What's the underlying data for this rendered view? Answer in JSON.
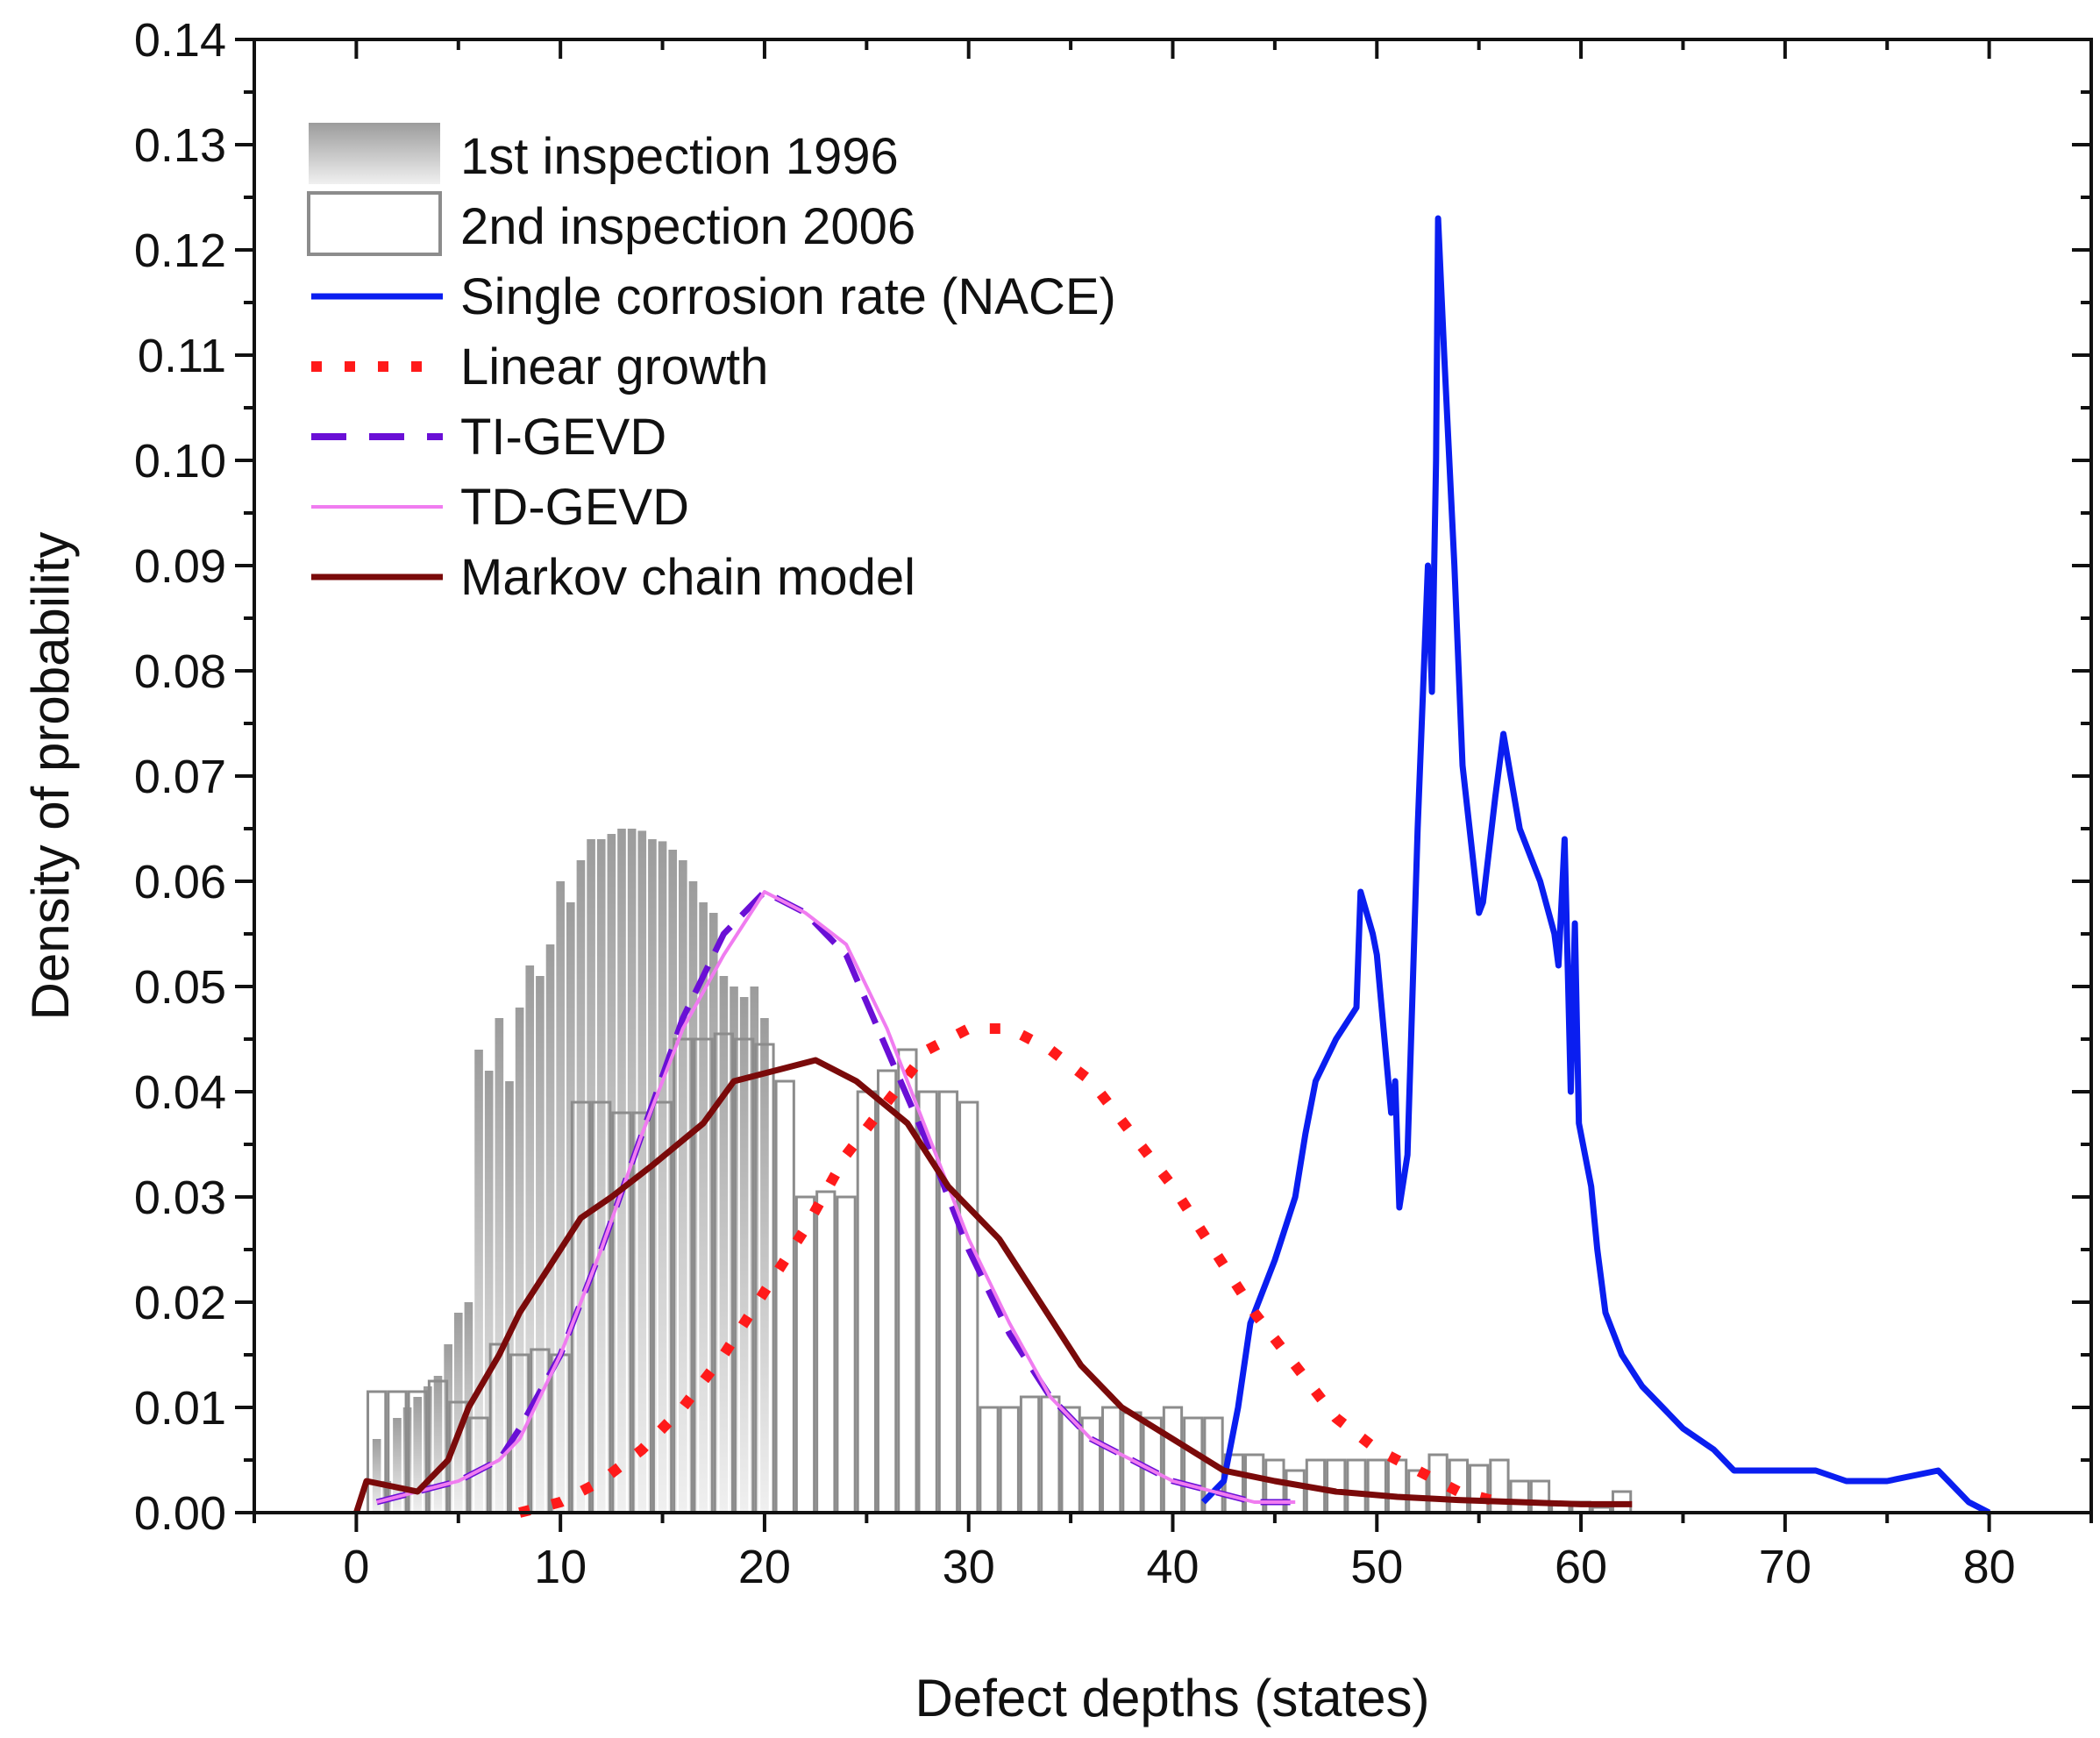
{
  "chart_data": {
    "type": "bar",
    "title": "",
    "xlabel": "Defect depths (states)",
    "ylabel": "Density of probability",
    "xlim": [
      -5,
      85
    ],
    "ylim": [
      0,
      0.14
    ],
    "xticks": [
      0,
      10,
      20,
      30,
      40,
      50,
      60,
      70,
      80
    ],
    "yticks": [
      0.0,
      0.01,
      0.02,
      0.03,
      0.04,
      0.05,
      0.06,
      0.07,
      0.08,
      0.09,
      0.1,
      0.11,
      0.12,
      0.13,
      0.14
    ],
    "xtick_labels": [
      "0",
      "10",
      "20",
      "30",
      "40",
      "50",
      "60",
      "70",
      "80"
    ],
    "ytick_labels": [
      "0.00",
      "0.01",
      "0.02",
      "0.03",
      "0.04",
      "0.05",
      "0.06",
      "0.07",
      "0.08",
      "0.09",
      "0.10",
      "0.11",
      "0.12",
      "0.13",
      "0.14"
    ],
    "legend_position": "top-left",
    "grid": false,
    "histograms": [
      {
        "name": "1st inspection 1996",
        "style": "filled-gradient-gray",
        "bin_width": 0.5,
        "x": [
          1.0,
          1.5,
          2.0,
          2.5,
          3.0,
          3.5,
          4.0,
          4.5,
          5.0,
          5.5,
          6.0,
          6.5,
          7.0,
          7.5,
          8.0,
          8.5,
          9.0,
          9.5,
          10.0,
          10.5,
          11.0,
          11.5,
          12.0,
          12.5,
          13.0,
          13.5,
          14.0,
          14.5,
          15.0,
          15.5,
          16.0,
          16.5,
          17.0,
          17.5,
          18.0,
          18.5,
          19.0,
          19.5,
          20.0
        ],
        "values": [
          0.007,
          0.003,
          0.009,
          0.01,
          0.011,
          0.012,
          0.013,
          0.016,
          0.019,
          0.02,
          0.044,
          0.042,
          0.047,
          0.041,
          0.048,
          0.052,
          0.051,
          0.054,
          0.06,
          0.058,
          0.062,
          0.064,
          0.064,
          0.0645,
          0.065,
          0.065,
          0.0648,
          0.064,
          0.0638,
          0.063,
          0.062,
          0.06,
          0.058,
          0.057,
          0.051,
          0.05,
          0.049,
          0.05,
          0.047
        ]
      },
      {
        "name": "2nd inspection 2006",
        "style": "outline-gray",
        "bin_width": 1.0,
        "x": [
          1,
          2,
          3,
          4,
          5,
          6,
          7,
          8,
          9,
          10,
          11,
          12,
          13,
          14,
          15,
          16,
          17,
          18,
          19,
          20,
          21,
          22,
          23,
          24,
          25,
          26,
          27,
          28,
          29,
          30,
          31,
          32,
          33,
          34,
          35,
          36,
          37,
          38,
          39,
          40,
          41,
          42,
          43,
          44,
          45,
          46,
          47,
          48,
          49,
          50,
          51,
          52,
          53,
          54,
          55,
          56,
          57,
          58,
          59,
          60,
          61,
          62
        ],
        "values": [
          0.0115,
          0.0115,
          0.0115,
          0.0125,
          0.0105,
          0.009,
          0.016,
          0.015,
          0.0155,
          0.015,
          0.039,
          0.039,
          0.038,
          0.038,
          0.039,
          0.045,
          0.045,
          0.0455,
          0.045,
          0.0445,
          0.041,
          0.03,
          0.0305,
          0.03,
          0.04,
          0.042,
          0.044,
          0.04,
          0.04,
          0.039,
          0.01,
          0.01,
          0.011,
          0.011,
          0.01,
          0.009,
          0.01,
          0.0095,
          0.009,
          0.01,
          0.009,
          0.009,
          0.0055,
          0.0055,
          0.005,
          0.004,
          0.005,
          0.005,
          0.005,
          0.005,
          0.005,
          0.004,
          0.0055,
          0.005,
          0.0045,
          0.005,
          0.003,
          0.003,
          0.001,
          0.001,
          0.0005,
          0.002
        ]
      }
    ],
    "series": [
      {
        "name": "Single corrosion rate (NACE)",
        "style": "solid-blue",
        "x": [
          41.5,
          42.5,
          43.2,
          43.8,
          45.0,
          46.0,
          46.5,
          47.0,
          48.0,
          49.0,
          49.2,
          49.8,
          50.0,
          50.7,
          50.9,
          51.1,
          51.5,
          52.0,
          52.5,
          52.7,
          52.9,
          53.0,
          53.3,
          53.8,
          54.2,
          55.0,
          55.2,
          55.8,
          56.2,
          57.0,
          58.0,
          58.7,
          58.9,
          59.2,
          59.5,
          59.7,
          59.9,
          60.5,
          60.8,
          61.2,
          62.0,
          63.0,
          64.0,
          65.0,
          66.5,
          67.5,
          68.5,
          70.0,
          71.5,
          73.0,
          75.0,
          77.5,
          78.0,
          79.0,
          80.0
        ],
        "y": [
          0.001,
          0.003,
          0.01,
          0.018,
          0.024,
          0.03,
          0.036,
          0.041,
          0.045,
          0.048,
          0.059,
          0.055,
          0.053,
          0.038,
          0.041,
          0.029,
          0.034,
          0.065,
          0.09,
          0.078,
          0.1,
          0.123,
          0.11,
          0.09,
          0.071,
          0.057,
          0.058,
          0.068,
          0.074,
          0.065,
          0.06,
          0.055,
          0.052,
          0.064,
          0.04,
          0.056,
          0.037,
          0.031,
          0.025,
          0.019,
          0.015,
          0.012,
          0.01,
          0.008,
          0.006,
          0.004,
          0.004,
          0.004,
          0.004,
          0.003,
          0.003,
          0.004,
          0.003,
          0.001,
          0.0
        ]
      },
      {
        "name": "Linear growth",
        "style": "dotted-red",
        "x": [
          8.0,
          10.0,
          12.0,
          14.0,
          16.0,
          18.0,
          20.0,
          22.0,
          24.0,
          26.0,
          28.0,
          30.0,
          32.0,
          34.0,
          36.0,
          38.0,
          40.0,
          42.0,
          44.0,
          46.0,
          48.0,
          50.0,
          52.0,
          54.0,
          56.0
        ],
        "y": [
          0.0,
          0.001,
          0.003,
          0.006,
          0.01,
          0.015,
          0.021,
          0.027,
          0.034,
          0.039,
          0.044,
          0.046,
          0.046,
          0.044,
          0.041,
          0.036,
          0.031,
          0.025,
          0.019,
          0.014,
          0.009,
          0.006,
          0.004,
          0.002,
          0.001
        ]
      },
      {
        "name": "TI-GEVD",
        "style": "dashed-purple",
        "x": [
          1.0,
          3.0,
          5.0,
          7.0,
          8.0,
          10.0,
          12.0,
          14.0,
          16.0,
          18.0,
          20.0,
          22.0,
          24.0,
          26.0,
          28.0,
          30.0,
          32.0,
          34.0,
          36.0,
          38.0,
          40.0,
          42.0,
          44.0,
          46.0
        ],
        "y": [
          0.001,
          0.002,
          0.003,
          0.005,
          0.008,
          0.015,
          0.025,
          0.036,
          0.047,
          0.055,
          0.059,
          0.057,
          0.053,
          0.044,
          0.035,
          0.025,
          0.017,
          0.011,
          0.007,
          0.005,
          0.003,
          0.002,
          0.001,
          0.001
        ]
      },
      {
        "name": "TD-GEVD",
        "style": "solid-thin-violet",
        "x": [
          1.0,
          3.0,
          5.0,
          7.0,
          8.0,
          10.0,
          12.0,
          14.0,
          16.0,
          18.0,
          20.0,
          22.0,
          24.0,
          26.0,
          28.0,
          30.0,
          32.0,
          34.0,
          36.0,
          38.0,
          40.0,
          42.0,
          44.0,
          46.0
        ],
        "y": [
          0.001,
          0.002,
          0.003,
          0.005,
          0.007,
          0.015,
          0.025,
          0.036,
          0.046,
          0.053,
          0.059,
          0.057,
          0.054,
          0.046,
          0.036,
          0.026,
          0.018,
          0.011,
          0.007,
          0.005,
          0.003,
          0.002,
          0.001,
          0.001
        ]
      },
      {
        "name": "Markov chain model",
        "style": "solid-dark-red",
        "x": [
          0.0,
          0.5,
          3.0,
          4.5,
          5.5,
          7.0,
          8.0,
          9.0,
          11.0,
          12.5,
          14.5,
          17.0,
          18.5,
          20.5,
          22.5,
          24.5,
          27.0,
          29.0,
          31.5,
          33.5,
          35.5,
          37.5,
          40.0,
          42.5,
          45.0,
          48.0,
          51.0,
          54.0,
          57.0,
          60.0,
          62.5
        ],
        "y": [
          0.0,
          0.003,
          0.002,
          0.005,
          0.01,
          0.015,
          0.019,
          0.022,
          0.028,
          0.03,
          0.033,
          0.037,
          0.041,
          0.042,
          0.043,
          0.041,
          0.037,
          0.031,
          0.026,
          0.02,
          0.014,
          0.01,
          0.007,
          0.004,
          0.003,
          0.002,
          0.0015,
          0.0012,
          0.001,
          0.0008,
          0.0008
        ]
      }
    ]
  },
  "legend": [
    {
      "label": "1st inspection 1996",
      "kind": "gradient-box",
      "color": "#b4b4b4"
    },
    {
      "label": "2nd inspection 2006",
      "kind": "outline-box",
      "color": "#8c8c8c"
    },
    {
      "label": "Single corrosion rate (NACE)",
      "kind": "line",
      "color": "#0a1ef0"
    },
    {
      "label": "Linear growth",
      "kind": "dotted",
      "color": "#ff1a1a"
    },
    {
      "label": "TI-GEVD",
      "kind": "dashed",
      "color": "#6a0fd6"
    },
    {
      "label": "TD-GEVD",
      "kind": "thin-line",
      "color": "#f07cf0"
    },
    {
      "label": "Markov chain model",
      "kind": "line",
      "color": "#7a0a0a"
    }
  ],
  "colors": {
    "axis": "#111111",
    "hist_outline": "#8c8c8c",
    "hist_fill_dark": "#9a9a9a",
    "hist_fill_light": "#eeeeee",
    "nace": "#0a1ef0",
    "linear": "#ff1a1a",
    "ti_gevd": "#6a0fd6",
    "td_gevd": "#f07cf0",
    "markov": "#7a0a0a"
  }
}
